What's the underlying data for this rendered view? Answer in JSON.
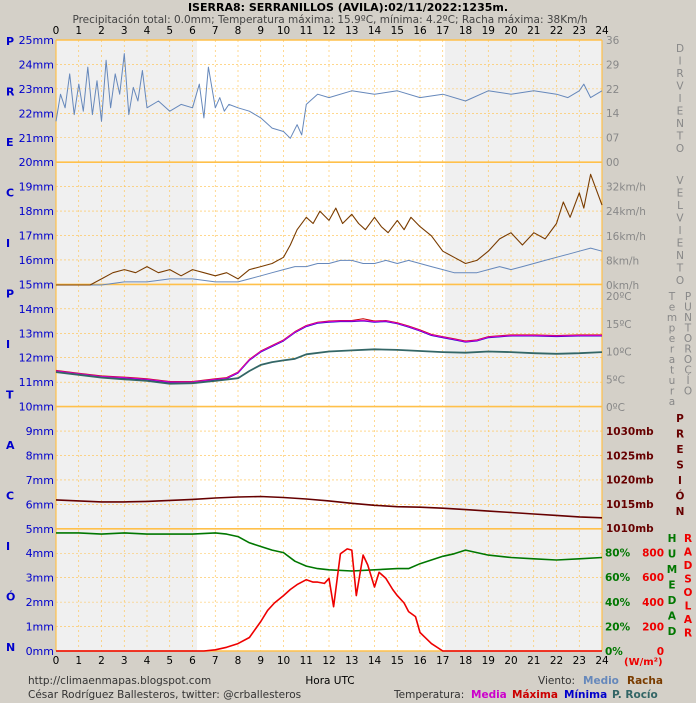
{
  "header": {
    "title": "ISERRA8: SERRANILLOS (AVILA):02/11/2022:1235m.",
    "subtitle": "Precipitación total: 0.0mm; Temperatura máxima: 15.9ºC, mínima: 4.2ºC; Racha máxima: 38Km/h"
  },
  "x_axis": {
    "label": "Hora UTC",
    "ticks": [
      "0",
      "1",
      "2",
      "3",
      "4",
      "5",
      "6",
      "7",
      "8",
      "9",
      "10",
      "11",
      "12",
      "13",
      "14",
      "15",
      "16",
      "17",
      "18",
      "19",
      "20",
      "21",
      "22",
      "23",
      "24"
    ]
  },
  "left_axis": {
    "pressure_ticks": [
      "25mm",
      "24mm",
      "23mm",
      "22mm",
      "21mm",
      "20mm"
    ],
    "precip_ticks": [
      "19mm",
      "18mm",
      "17mm",
      "16mm",
      "15mm",
      "14mm",
      "13mm",
      "12mm",
      "11mm",
      "10mm",
      "9mm",
      "8mm",
      "7mm",
      "6mm",
      "5mm",
      "4mm",
      "3mm",
      "2mm",
      "1mm",
      "0mm"
    ],
    "side_letters": [
      "P",
      "R",
      "E",
      "C",
      "I",
      "P",
      "I",
      "T",
      "A",
      "C",
      "I",
      "Ó",
      "N"
    ]
  },
  "right_axis": {
    "direction_ticks": [
      "36",
      "29",
      "22",
      "14",
      "07",
      "00"
    ],
    "speed_ticks": [
      "32km/h",
      "24km/h",
      "16km/h",
      "8km/h",
      "0km/h"
    ],
    "temp_ticks": [
      "20ºC",
      "15ºC",
      "10ºC",
      "5ºC",
      "0ºC"
    ],
    "pressure_ticks": [
      "1030mb",
      "1025mb",
      "1020mb",
      "1015mb",
      "1010mb"
    ],
    "humidity_ticks": [
      "80%",
      "60%",
      "40%",
      "20%",
      "0%"
    ],
    "solar_ticks": [
      "800",
      "600",
      "400",
      "200",
      "0"
    ],
    "solar_unit": "(W/m²)",
    "labels": {
      "dir_viento": "DIR VIENTO",
      "vel_viento": "VEL VIENTO",
      "temp_punto": "Temperatura",
      "punto_rocio": "PUNTO ROCÍO",
      "presion": "PRESIÓN",
      "humedad": "HUMEDAD",
      "rad_solar": "RAD SOLAR"
    }
  },
  "footer": {
    "url": "http://climaenmapas.blogspot.com",
    "credit": "César Rodríguez Ballesteros, twitter: @crballesteros",
    "viento_label": "Viento:",
    "viento_medio": "Medio",
    "viento_racha": "Racha",
    "temp_label": "Temperatura:",
    "temp_media": "Media",
    "temp_maxima": "Máxima",
    "temp_minima": "Mínima",
    "temp_rocio": "P. Rocío"
  },
  "colors": {
    "background": "#d4d0c8",
    "night": "#f0f0f0",
    "day": "#ffffff",
    "grid": "#ffc04a",
    "wind_dir": "#6688bb",
    "gust": "#7a3c00",
    "temp_media": "#cc00cc",
    "temp_max": "#cc0000",
    "temp_min": "#0000cc",
    "dewpoint": "#336666",
    "pressure": "#660000",
    "humidity": "#007700",
    "solar": "#ee0000",
    "left_labels": "#0000cc"
  },
  "chart_data": {
    "type": "line",
    "x_unit": "hours UTC",
    "x_range": [
      0,
      24
    ],
    "daylight_hours": [
      6.2,
      17.1
    ],
    "panels": [
      {
        "name": "wind_direction",
        "ylim": [
          0,
          36
        ],
        "series": [
          {
            "key": "dir",
            "x": [
              0,
              0.2,
              0.4,
              0.6,
              0.8,
              1,
              1.2,
              1.4,
              1.6,
              1.8,
              2,
              2.2,
              2.4,
              2.6,
              2.8,
              3,
              3.2,
              3.4,
              3.6,
              3.8,
              4,
              4.5,
              5,
              5.5,
              6,
              6.3,
              6.5,
              6.7,
              7,
              7.2,
              7.4,
              7.6,
              8,
              8.5,
              9,
              9.5,
              10,
              10.3,
              10.6,
              10.8,
              11,
              11.5,
              12,
              13,
              14,
              15,
              16,
              17,
              18,
              19,
              20,
              21,
              22,
              22.5,
              23,
              23.2,
              23.5,
              24
            ],
            "values": [
              12,
              20,
              16,
              26,
              14,
              23,
              15,
              28,
              14,
              24,
              12,
              30,
              16,
              26,
              20,
              32,
              14,
              22,
              18,
              27,
              16,
              18,
              15,
              17,
              16,
              23,
              13,
              28,
              16,
              19,
              15,
              17,
              16,
              15,
              13,
              10,
              9,
              7,
              11,
              8,
              17,
              20,
              19,
              21,
              20,
              21,
              19,
              20,
              18,
              21,
              20,
              21,
              20,
              19,
              21,
              23,
              19,
              21
            ]
          }
        ]
      },
      {
        "name": "wind_speed",
        "ylim": [
          0,
          40
        ],
        "series": [
          {
            "key": "gust",
            "x": [
              0,
              1,
              1.5,
              2,
              2.5,
              3,
              3.5,
              4,
              4.5,
              5,
              5.5,
              6,
              6.5,
              7,
              7.5,
              8,
              8.5,
              9,
              9.5,
              10,
              10.3,
              10.6,
              11,
              11.3,
              11.6,
              12,
              12.3,
              12.6,
              13,
              13.3,
              13.6,
              14,
              14.3,
              14.6,
              15,
              15.3,
              15.6,
              16,
              16.5,
              17,
              17.5,
              18,
              18.5,
              19,
              19.5,
              20,
              20.5,
              21,
              21.5,
              22,
              22.3,
              22.6,
              23,
              23.2,
              23.5,
              24
            ],
            "values": [
              0,
              0,
              0,
              2,
              4,
              5,
              4,
              6,
              4,
              5,
              3,
              5,
              4,
              3,
              4,
              2,
              5,
              6,
              7,
              9,
              13,
              18,
              22,
              20,
              24,
              21,
              25,
              20,
              23,
              20,
              18,
              22,
              19,
              17,
              21,
              18,
              22,
              19,
              16,
              11,
              9,
              7,
              8,
              11,
              15,
              17,
              13,
              17,
              15,
              20,
              27,
              22,
              30,
              25,
              36,
              26
            ]
          },
          {
            "key": "medio",
            "x": [
              0,
              2,
              3,
              4,
              5,
              6,
              7,
              8,
              8.5,
              9,
              9.5,
              10,
              10.5,
              11,
              11.5,
              12,
              12.5,
              13,
              13.5,
              14,
              14.5,
              15,
              15.5,
              16,
              16.5,
              17,
              17.5,
              18,
              18.5,
              19,
              19.5,
              20,
              20.5,
              21,
              21.5,
              22,
              22.5,
              23,
              23.5,
              24
            ],
            "values": [
              0,
              0,
              1,
              1,
              2,
              2,
              1,
              1,
              2,
              3,
              4,
              5,
              6,
              6,
              7,
              7,
              8,
              8,
              7,
              7,
              8,
              7,
              8,
              7,
              6,
              5,
              4,
              4,
              4,
              5,
              6,
              5,
              6,
              7,
              8,
              9,
              10,
              11,
              12,
              11
            ]
          }
        ]
      },
      {
        "name": "temperature",
        "ylim": [
          0,
          22
        ],
        "series": [
          {
            "key": "media",
            "x": [
              0,
              1,
              2,
              3,
              4,
              5,
              6,
              7,
              7.5,
              8,
              8.5,
              9,
              9.5,
              10,
              10.5,
              11,
              11.5,
              12,
              12.5,
              13,
              13.5,
              14,
              14.5,
              15,
              15.5,
              16,
              16.5,
              17,
              17.5,
              18,
              18.5,
              19,
              20,
              21,
              22,
              23,
              24
            ],
            "values": [
              6.5,
              6.0,
              5.5,
              5.3,
              5.0,
              4.5,
              4.5,
              5.0,
              5.2,
              6.2,
              8.5,
              10.0,
              11.0,
              12.0,
              13.5,
              14.6,
              15.2,
              15.4,
              15.5,
              15.5,
              15.6,
              15.4,
              15.5,
              15.1,
              14.5,
              13.8,
              13.0,
              12.6,
              12.2,
              11.8,
              12.0,
              12.6,
              12.9,
              12.9,
              12.8,
              12.9,
              12.9
            ]
          },
          {
            "key": "maxima",
            "x": [
              0,
              1,
              2,
              3,
              4,
              5,
              6,
              7,
              7.5,
              8,
              8.5,
              9,
              9.5,
              10,
              10.5,
              11,
              11.5,
              12,
              12.5,
              13,
              13.5,
              14,
              14.5,
              15,
              15.5,
              16,
              16.5,
              17,
              17.5,
              18,
              18.5,
              19,
              20,
              21,
              22,
              23,
              24
            ],
            "values": [
              6.6,
              6.1,
              5.6,
              5.4,
              5.1,
              4.6,
              4.6,
              5.1,
              5.3,
              6.3,
              8.6,
              10.1,
              11.1,
              12.1,
              13.6,
              14.7,
              15.3,
              15.5,
              15.6,
              15.6,
              15.9,
              15.5,
              15.6,
              15.2,
              14.6,
              13.9,
              13.1,
              12.7,
              12.3,
              11.9,
              12.1,
              12.7,
              13.0,
              13.0,
              12.9,
              13.0,
              13.0
            ]
          },
          {
            "key": "minima",
            "x": [
              0,
              1,
              2,
              3,
              4,
              5,
              6,
              7,
              7.5,
              8,
              8.5,
              9,
              9.5,
              10,
              10.5,
              11,
              11.5,
              12,
              12.5,
              13,
              13.5,
              14,
              14.5,
              15,
              15.5,
              16,
              16.5,
              17,
              17.5,
              18,
              18.5,
              19,
              20,
              21,
              22,
              23,
              24
            ],
            "values": [
              6.4,
              5.9,
              5.4,
              5.2,
              4.9,
              4.4,
              4.4,
              4.9,
              5.1,
              6.1,
              8.4,
              9.9,
              10.9,
              11.9,
              13.4,
              14.5,
              15.1,
              15.3,
              15.4,
              15.4,
              15.5,
              15.3,
              15.4,
              15.0,
              14.4,
              13.7,
              12.9,
              12.5,
              12.1,
              11.7,
              11.9,
              12.5,
              12.8,
              12.8,
              12.7,
              12.8,
              12.8
            ]
          },
          {
            "key": "rocio",
            "x": [
              0,
              1,
              2,
              3,
              4,
              5,
              6,
              7,
              8,
              8.5,
              9,
              9.5,
              10,
              10.5,
              11,
              12,
              13,
              14,
              15,
              16,
              17,
              18,
              19,
              20,
              21,
              22,
              23,
              24
            ],
            "values": [
              6.3,
              5.8,
              5.3,
              5.0,
              4.7,
              4.2,
              4.3,
              4.7,
              5.2,
              6.5,
              7.6,
              8.1,
              8.4,
              8.7,
              9.5,
              10.0,
              10.2,
              10.4,
              10.3,
              10.1,
              9.9,
              9.8,
              10.0,
              9.9,
              9.7,
              9.6,
              9.7,
              9.9
            ]
          }
        ]
      },
      {
        "name": "pressure",
        "ylim": [
          1010,
          1035
        ],
        "series": [
          {
            "key": "presion",
            "x": [
              0,
              1,
              2,
              3,
              4,
              5,
              6,
              7,
              8,
              9,
              10,
              11,
              12,
              13,
              14,
              15,
              16,
              17,
              18,
              19,
              20,
              21,
              22,
              23,
              24
            ],
            "values": [
              1015.8,
              1015.6,
              1015.4,
              1015.4,
              1015.5,
              1015.7,
              1015.9,
              1016.2,
              1016.4,
              1016.5,
              1016.3,
              1016.0,
              1015.6,
              1015.1,
              1014.7,
              1014.4,
              1014.3,
              1014.1,
              1013.8,
              1013.5,
              1013.2,
              1012.9,
              1012.6,
              1012.3,
              1012.1
            ]
          }
        ]
      },
      {
        "name": "humidity_solar",
        "ylim_humidity": [
          0,
          100
        ],
        "ylim_solar": [
          0,
          1000
        ],
        "series": [
          {
            "key": "humedad",
            "x": [
              0,
              1,
              2,
              3,
              4,
              5,
              6,
              7,
              7.5,
              8,
              8.5,
              9,
              9.5,
              10,
              10.5,
              11,
              11.5,
              12,
              13,
              14,
              15,
              15.5,
              16,
              16.5,
              17,
              17.5,
              18,
              18.5,
              19,
              20,
              21,
              22,
              23,
              24
            ],
            "values": [
              96,
              96,
              95,
              96,
              95,
              95,
              95,
              96,
              95,
              93,
              88,
              85,
              82,
              80,
              73,
              69,
              67,
              66,
              65,
              66,
              67,
              67,
              71,
              74,
              77,
              79,
              82,
              80,
              78,
              76,
              75,
              74,
              75,
              76
            ]
          },
          {
            "key": "solar",
            "x": [
              0,
              6.5,
              7,
              7.5,
              8,
              8.5,
              9,
              9.3,
              9.6,
              10,
              10.3,
              10.6,
              11,
              11.3,
              11.5,
              11.8,
              12,
              12.2,
              12.5,
              12.8,
              13,
              13.2,
              13.5,
              13.7,
              14,
              14.2,
              14.5,
              14.8,
              15,
              15.3,
              15.5,
              15.8,
              16,
              16.5,
              17,
              24
            ],
            "values": [
              0,
              0,
              10,
              30,
              60,
              110,
              240,
              330,
              390,
              450,
              500,
              540,
              580,
              560,
              560,
              550,
              590,
              360,
              790,
              830,
              820,
              450,
              780,
              700,
              520,
              640,
              590,
              500,
              450,
              390,
              320,
              280,
              150,
              60,
              0,
              0
            ]
          }
        ]
      }
    ]
  }
}
